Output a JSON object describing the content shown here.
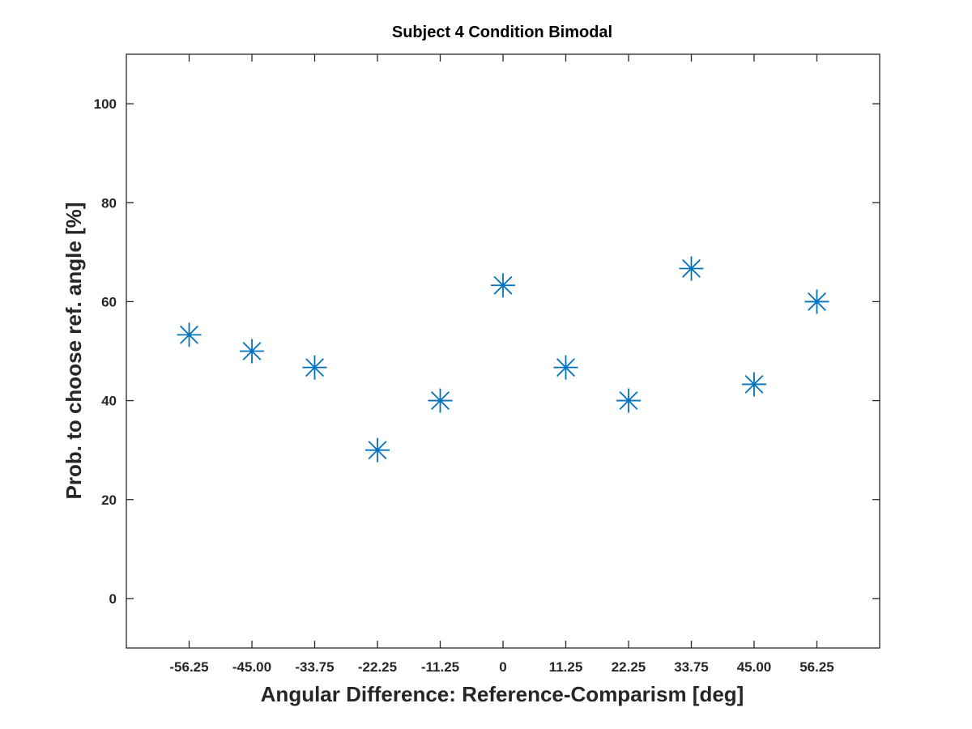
{
  "chart_data": {
    "type": "scatter",
    "title": "Subject 4 Condition Bimodal",
    "xlabel": "Angular Difference: Reference-Comparism [deg]",
    "ylabel": "Prob. to choose ref. angle [%]",
    "xlim": [
      -67.5,
      67.5
    ],
    "ylim": [
      -10,
      110
    ],
    "x_tick_labels": [
      "-56.25",
      "-45.00",
      "-33.75",
      "-22.25",
      "-11.25",
      "0",
      "11.25",
      "22.25",
      "33.75",
      "45.00",
      "56.25"
    ],
    "y_ticks": [
      0,
      20,
      40,
      60,
      80,
      100
    ],
    "y_tick_labels": [
      "0",
      "20",
      "40",
      "60",
      "80",
      "100"
    ],
    "marker": "asterisk",
    "grid": false,
    "color": "#0072BD",
    "x": [
      -56.25,
      -45.0,
      -33.75,
      -22.5,
      -11.25,
      0,
      11.25,
      22.5,
      33.75,
      45.0,
      56.25
    ],
    "y": [
      53.3,
      50.0,
      46.7,
      30.0,
      40.0,
      63.3,
      46.7,
      40.0,
      66.7,
      43.3,
      60.0
    ]
  }
}
